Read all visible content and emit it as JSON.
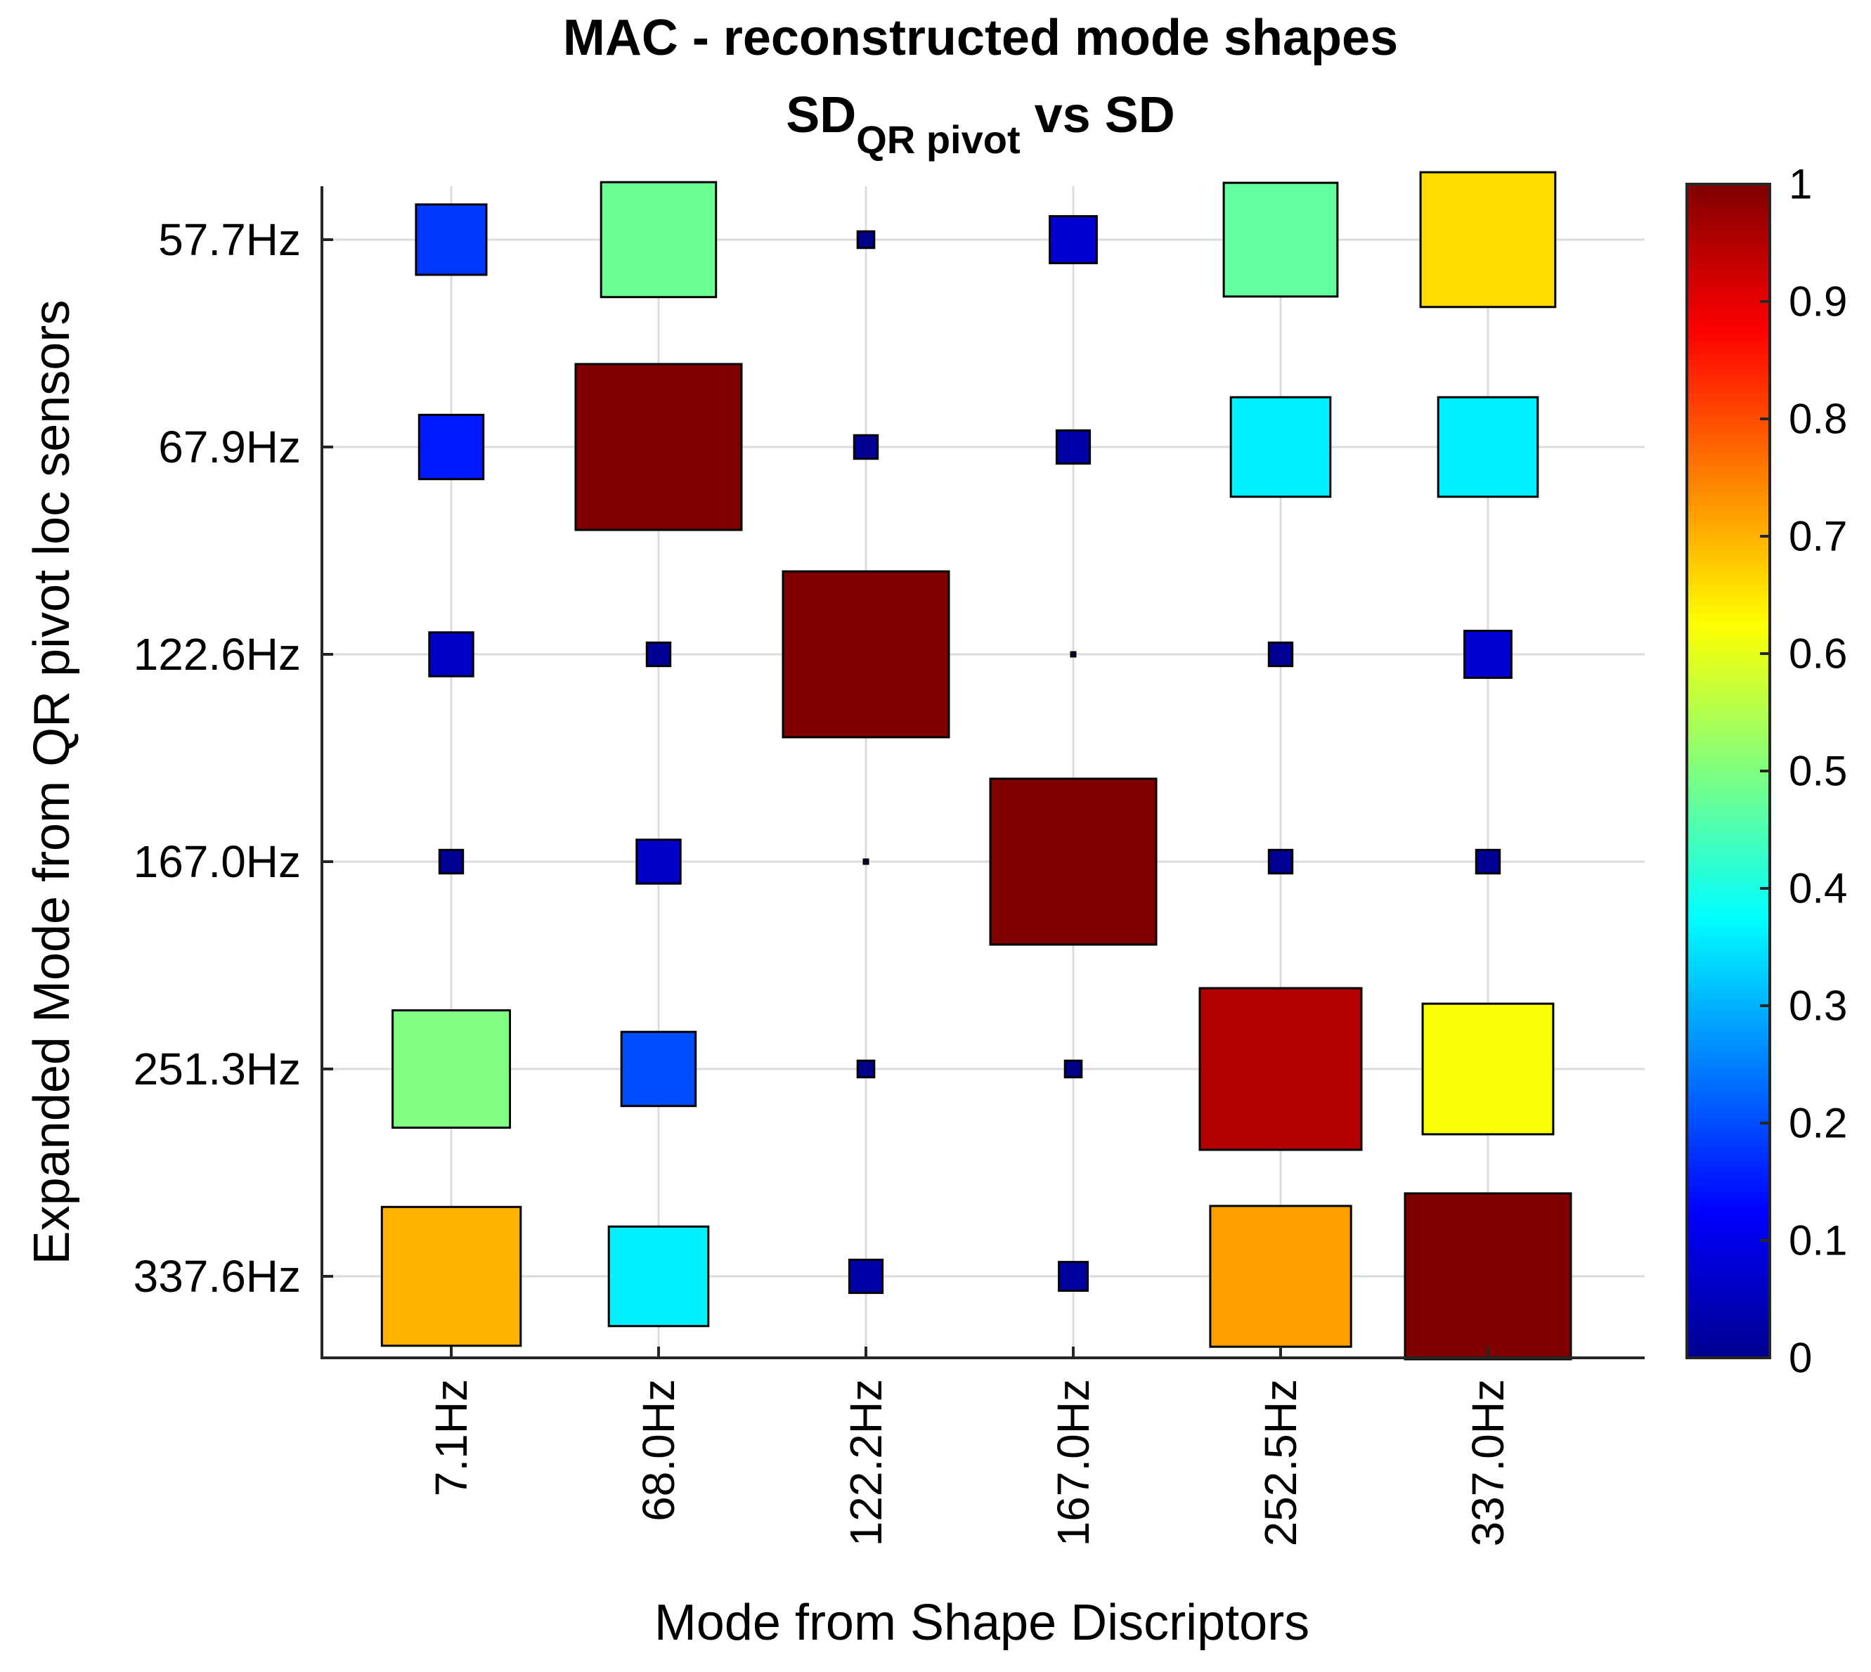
{
  "chart_data": {
    "type": "heatmap",
    "title_line1": "MAC - reconstructed mode shapes",
    "title_line2": {
      "main": "SD",
      "subscript": "QR pivot",
      "tail": " vs SD"
    },
    "xlabel": "Mode from Shape Discriptors",
    "ylabel": "Expanded Mode from QR pivot loc sensors",
    "x_categories": [
      "7.1Hz",
      "68.0Hz",
      "122.2Hz",
      "167.0Hz",
      "252.5Hz",
      "337.0Hz"
    ],
    "y_categories": [
      "57.7Hz",
      "67.9Hz",
      "122.6Hz",
      "167.0Hz",
      "251.3Hz",
      "337.6Hz"
    ],
    "values": [
      [
        0.18,
        0.48,
        0.01,
        0.08,
        0.47,
        0.66
      ],
      [
        0.15,
        1.0,
        0.02,
        0.04,
        0.36,
        0.36
      ],
      [
        0.07,
        0.02,
        1.0,
        0.0,
        0.02,
        0.08
      ],
      [
        0.02,
        0.07,
        0.0,
        1.0,
        0.02,
        0.02
      ],
      [
        0.5,
        0.2,
        0.01,
        0.01,
        0.95,
        0.62
      ],
      [
        0.7,
        0.36,
        0.04,
        0.03,
        0.72,
        1.0
      ]
    ],
    "colorbar": {
      "range": [
        0,
        1
      ],
      "ticks": [
        "0",
        "0.1",
        "0.2",
        "0.3",
        "0.4",
        "0.5",
        "0.6",
        "0.7",
        "0.8",
        "0.9",
        "1"
      ],
      "colormap": "jet"
    },
    "grid": true,
    "marker": "square sized and colored by MAC value"
  }
}
